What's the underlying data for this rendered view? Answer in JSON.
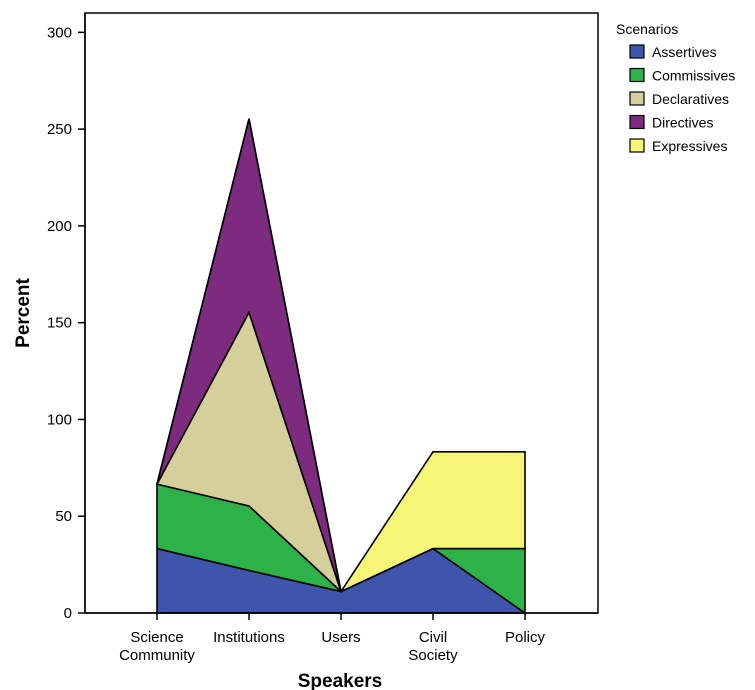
{
  "chart_data": {
    "type": "area",
    "stacked": true,
    "title": "",
    "xlabel": "Speakers",
    "ylabel": "Percent",
    "ylim": [
      0,
      310
    ],
    "yticks": [
      0,
      50,
      100,
      150,
      200,
      250,
      300
    ],
    "grid": false,
    "legend": {
      "title": "Scenarios",
      "placement": "right-top"
    },
    "categories": [
      "Science Community",
      "Institutions",
      "Users",
      "Civil Society",
      "Policy"
    ],
    "category_lines": [
      [
        "Science",
        "Community"
      ],
      [
        "Institutions"
      ],
      [
        "Users"
      ],
      [
        "Civil",
        "Society"
      ],
      [
        "Policy"
      ]
    ],
    "series": [
      {
        "name": "Assertives",
        "color": "#3E55AB",
        "values": [
          33.3,
          22,
          11.1,
          33.3,
          0
        ]
      },
      {
        "name": "Commissives",
        "color": "#2DB24A",
        "values": [
          33.3,
          33.3,
          0,
          0,
          33.3
        ]
      },
      {
        "name": "Declaratives",
        "color": "#D4CF9B",
        "values": [
          0,
          100,
          0,
          0,
          0
        ]
      },
      {
        "name": "Directives",
        "color": "#7C2B7E",
        "values": [
          0,
          100,
          0,
          0,
          0
        ]
      },
      {
        "name": "Expressives",
        "color": "#F7F577",
        "values": [
          0,
          0,
          0,
          50,
          50
        ]
      }
    ]
  }
}
